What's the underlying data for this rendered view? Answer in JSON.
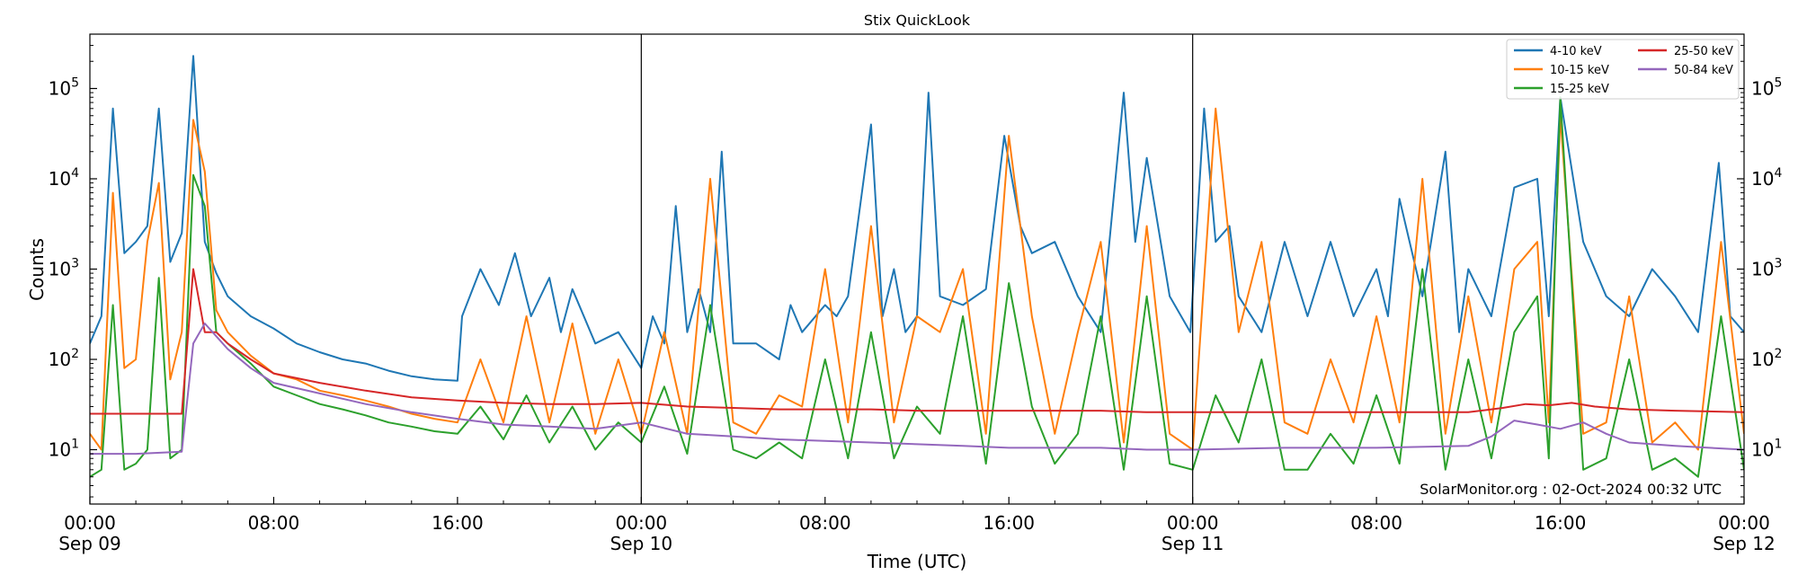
{
  "chart_data": {
    "type": "line",
    "title": "Stix QuickLook",
    "xlabel": "Time (UTC)",
    "ylabel": "Counts",
    "yscale": "log",
    "ylim": [
      2.5,
      400000
    ],
    "xlim_hours": [
      0,
      72
    ],
    "x_ticks": [
      {
        "hour": 0,
        "time": "00:00",
        "date": "Sep 09"
      },
      {
        "hour": 8,
        "time": "08:00",
        "date": ""
      },
      {
        "hour": 16,
        "time": "16:00",
        "date": ""
      },
      {
        "hour": 24,
        "time": "00:00",
        "date": "Sep 10"
      },
      {
        "hour": 32,
        "time": "08:00",
        "date": ""
      },
      {
        "hour": 40,
        "time": "16:00",
        "date": ""
      },
      {
        "hour": 48,
        "time": "00:00",
        "date": "Sep 11"
      },
      {
        "hour": 56,
        "time": "08:00",
        "date": ""
      },
      {
        "hour": 64,
        "time": "16:00",
        "date": ""
      },
      {
        "hour": 72,
        "time": "00:00",
        "date": "Sep 12"
      }
    ],
    "y_ticks": [
      {
        "value": 10,
        "base": "10",
        "exp": "1"
      },
      {
        "value": 100,
        "base": "10",
        "exp": "2"
      },
      {
        "value": 1000,
        "base": "10",
        "exp": "3"
      },
      {
        "value": 10000,
        "base": "10",
        "exp": "4"
      },
      {
        "value": 100000,
        "base": "10",
        "exp": "5"
      }
    ],
    "day_lines_hours": [
      24,
      48
    ],
    "legend_position": "top-right",
    "annotation": "SolarMonitor.org : 02-Oct-2024 00:32 UTC",
    "series": [
      {
        "name": "4-10 keV",
        "color": "#1f77b4",
        "x": [
          0,
          0.5,
          1.0,
          1.5,
          2.0,
          2.5,
          3.0,
          3.5,
          4.0,
          4.5,
          5.0,
          5.5,
          6.0,
          7.0,
          8.0,
          9.0,
          10.0,
          11.0,
          12.0,
          13.0,
          14.0,
          15.0,
          16.0,
          16.2,
          17.0,
          17.8,
          18.5,
          19.2,
          20.0,
          20.5,
          21.0,
          22.0,
          23.0,
          24.0,
          24.5,
          25.0,
          25.5,
          26.0,
          26.5,
          27.0,
          27.5,
          28.0,
          29.0,
          30.0,
          30.5,
          31.0,
          32.0,
          32.5,
          33.0,
          34.0,
          34.5,
          35.0,
          35.5,
          36.0,
          36.5,
          37.0,
          38.0,
          39.0,
          39.8,
          40.5,
          41.0,
          42.0,
          43.0,
          44.0,
          45.0,
          45.5,
          46.0,
          47.0,
          47.9,
          48.5,
          49.0,
          49.6,
          50.0,
          51.0,
          52.0,
          53.0,
          54.0,
          55.0,
          56.0,
          56.5,
          57.0,
          58.0,
          59.0,
          59.6,
          60.0,
          61.0,
          62.0,
          63.0,
          63.5,
          64.0,
          65.0,
          66.0,
          67.0,
          68.0,
          69.0,
          70.0,
          70.9,
          71.4,
          72.0
        ],
        "values": [
          150,
          300,
          60000,
          1500,
          2000,
          3000,
          60000,
          1200,
          2500,
          230000,
          2000,
          900,
          500,
          300,
          220,
          150,
          120,
          100,
          90,
          75,
          65,
          60,
          58,
          300,
          1000,
          400,
          1500,
          300,
          800,
          200,
          600,
          150,
          200,
          80,
          300,
          150,
          5000,
          200,
          600,
          200,
          20000,
          150,
          150,
          100,
          400,
          200,
          400,
          300,
          500,
          40000,
          300,
          1000,
          200,
          300,
          90000,
          500,
          400,
          600,
          30000,
          3000,
          1500,
          2000,
          500,
          200,
          90000,
          2000,
          17000,
          500,
          200,
          60000,
          2000,
          3000,
          500,
          200,
          2000,
          300,
          2000,
          300,
          1000,
          300,
          6000,
          500,
          20000,
          200,
          1000,
          300,
          8000,
          10000,
          300,
          80000,
          2000,
          500,
          300,
          1000,
          500,
          200,
          15000,
          300,
          200
        ]
      },
      {
        "name": "10-15 keV",
        "color": "#ff7f0e",
        "x": [
          0,
          0.5,
          1.0,
          1.5,
          2.0,
          2.5,
          3.0,
          3.5,
          4.0,
          4.5,
          5.0,
          5.5,
          6.0,
          7.0,
          8.0,
          9.0,
          10.0,
          11.0,
          12.0,
          13.0,
          14.0,
          15.0,
          16.0,
          17.0,
          18.0,
          19.0,
          20.0,
          21.0,
          22.0,
          23.0,
          24.0,
          25.0,
          26.0,
          27.0,
          28.0,
          29.0,
          30.0,
          31.0,
          32.0,
          33.0,
          34.0,
          35.0,
          36.0,
          37.0,
          38.0,
          39.0,
          40.0,
          41.0,
          42.0,
          43.0,
          44.0,
          45.0,
          46.0,
          47.0,
          48.0,
          49.0,
          50.0,
          51.0,
          52.0,
          53.0,
          54.0,
          55.0,
          56.0,
          57.0,
          58.0,
          59.0,
          60.0,
          61.0,
          62.0,
          63.0,
          63.5,
          64.0,
          65.0,
          66.0,
          67.0,
          68.0,
          69.0,
          70.0,
          71.0,
          72.0
        ],
        "values": [
          15,
          10,
          7000,
          80,
          100,
          2000,
          9000,
          60,
          200,
          45000,
          12000,
          350,
          200,
          110,
          70,
          60,
          45,
          40,
          35,
          30,
          25,
          22,
          20,
          100,
          20,
          300,
          20,
          250,
          15,
          100,
          15,
          200,
          15,
          10000,
          20,
          15,
          40,
          30,
          1000,
          20,
          3000,
          20,
          300,
          200,
          1000,
          15,
          30000,
          300,
          15,
          200,
          2000,
          12,
          3000,
          15,
          10,
          60000,
          200,
          2000,
          20,
          15,
          100,
          20,
          300,
          20,
          10000,
          15,
          500,
          20,
          1000,
          2000,
          20,
          50000,
          15,
          20,
          500,
          12,
          20,
          10,
          2000,
          15
        ]
      },
      {
        "name": "15-25 keV",
        "color": "#2ca02c",
        "x": [
          0,
          0.5,
          1.0,
          1.5,
          2.0,
          2.5,
          3.0,
          3.5,
          4.0,
          4.5,
          5.0,
          5.5,
          6.0,
          7.0,
          8.0,
          9.0,
          10.0,
          11.0,
          12.0,
          13.0,
          14.0,
          15.0,
          16.0,
          17.0,
          18.0,
          19.0,
          20.0,
          21.0,
          22.0,
          23.0,
          24.0,
          25.0,
          26.0,
          27.0,
          28.0,
          29.0,
          30.0,
          31.0,
          32.0,
          33.0,
          34.0,
          35.0,
          36.0,
          37.0,
          38.0,
          39.0,
          40.0,
          41.0,
          42.0,
          43.0,
          44.0,
          45.0,
          46.0,
          47.0,
          48.0,
          49.0,
          50.0,
          51.0,
          52.0,
          53.0,
          54.0,
          55.0,
          56.0,
          57.0,
          58.0,
          59.0,
          60.0,
          61.0,
          62.0,
          63.0,
          63.5,
          64.0,
          65.0,
          66.0,
          67.0,
          68.0,
          69.0,
          70.0,
          71.0,
          72.0
        ],
        "values": [
          5,
          6,
          400,
          6,
          7,
          10,
          800,
          8,
          10,
          11000,
          5000,
          200,
          150,
          90,
          50,
          40,
          32,
          28,
          24,
          20,
          18,
          16,
          15,
          30,
          13,
          40,
          12,
          30,
          10,
          20,
          12,
          50,
          9,
          400,
          10,
          8,
          12,
          8,
          100,
          8,
          200,
          8,
          30,
          15,
          300,
          7,
          700,
          30,
          7,
          15,
          300,
          6,
          500,
          7,
          6,
          40,
          12,
          100,
          6,
          6,
          15,
          7,
          40,
          7,
          1000,
          6,
          100,
          8,
          200,
          500,
          8,
          80000,
          6,
          8,
          100,
          6,
          8,
          5,
          300,
          6
        ]
      },
      {
        "name": "25-50 keV",
        "color": "#d62728",
        "x": [
          0,
          2.0,
          4.0,
          4.5,
          5.0,
          5.5,
          6.0,
          7.0,
          8.0,
          10.0,
          12.0,
          14.0,
          16.0,
          18.0,
          20.0,
          22.0,
          24.0,
          26.0,
          28.0,
          30.0,
          32.0,
          34.0,
          36.0,
          38.0,
          40.0,
          42.0,
          44.0,
          46.0,
          48.0,
          52.0,
          56.0,
          60.0,
          61.5,
          62.5,
          63.5,
          64.5,
          65.5,
          67.0,
          69.0,
          72.0
        ],
        "values": [
          25,
          25,
          25,
          1000,
          200,
          200,
          150,
          100,
          70,
          55,
          45,
          38,
          35,
          33,
          32,
          32,
          33,
          30,
          29,
          28,
          28,
          28,
          27,
          27,
          27,
          27,
          27,
          26,
          26,
          26,
          26,
          26,
          29,
          32,
          31,
          33,
          30,
          28,
          27,
          26
        ]
      },
      {
        "name": "50-84 keV",
        "color": "#9467bd",
        "x": [
          0,
          2.0,
          4.0,
          4.5,
          5.0,
          5.5,
          6.0,
          7.0,
          8.0,
          10.0,
          12.0,
          14.0,
          16.0,
          18.0,
          20.0,
          22.0,
          24.0,
          26.0,
          28.0,
          30.0,
          32.0,
          34.0,
          36.0,
          38.0,
          40.0,
          42.0,
          44.0,
          46.0,
          48.0,
          52.0,
          56.0,
          60.0,
          61.0,
          62.0,
          63.0,
          64.0,
          65.0,
          66.0,
          67.0,
          69.0,
          72.0
        ],
        "values": [
          9,
          9,
          9.5,
          150,
          250,
          180,
          130,
          80,
          55,
          42,
          32,
          26,
          22,
          19,
          18,
          17,
          20,
          15,
          14,
          13,
          12.5,
          12,
          11.5,
          11,
          10.5,
          10.5,
          10.5,
          10,
          10,
          10.5,
          10.5,
          11,
          14,
          21,
          19,
          17,
          20,
          15,
          12,
          11,
          10
        ]
      }
    ]
  }
}
